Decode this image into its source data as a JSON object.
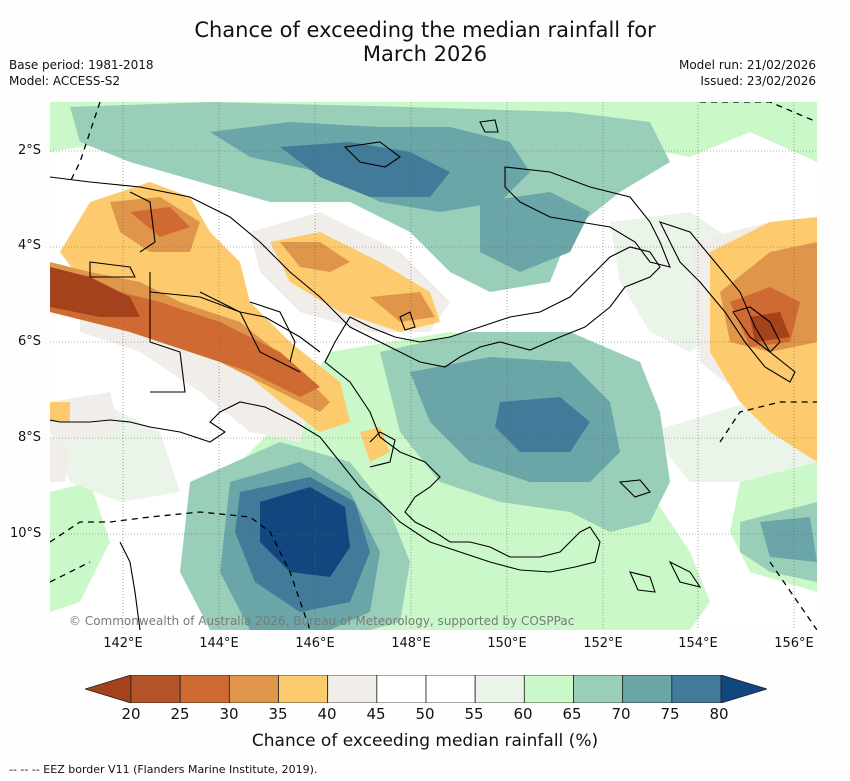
{
  "title": {
    "line1": "Chance of exceeding the median rainfall for",
    "line2": "March 2026"
  },
  "meta": {
    "base_period": "Base period: 1981-2018",
    "model": "Model: ACCESS-S2",
    "model_run": "Model run: 21/02/2026",
    "issued": "Issued: 23/02/2026"
  },
  "map": {
    "lat_labels": [
      "2°S",
      "4°S",
      "6°S",
      "8°S",
      "10°S"
    ],
    "lon_labels": [
      "142°E",
      "144°E",
      "146°E",
      "148°E",
      "150°E",
      "152°E",
      "154°E",
      "156°E"
    ],
    "copyright": "© Commonwealth of Australia 2026, Bureau of Meteorology, supported by COSPPac",
    "ocean_color": "#ffffff",
    "land_line_color": "#000000",
    "dash_color": "#000000"
  },
  "colorbar": {
    "ticks": [
      "20",
      "25",
      "30",
      "35",
      "40",
      "45",
      "50",
      "55",
      "60",
      "65",
      "70",
      "75",
      "80"
    ],
    "colors": [
      "#a3421b",
      "#b4532a",
      "#cf6a33",
      "#e0964a",
      "#fdcb6e",
      "#f1eeea",
      "#ffffff",
      "#ffffff",
      "#eaf4e8",
      "#cbf8c9",
      "#99cfb8",
      "#6aa5a8",
      "#427b9a",
      "#11467f"
    ],
    "label": "Chance of exceeding median rainfall (%)"
  },
  "footnote": "--  --  -- EEZ border V11 (Flanders Marine Institute, 2019)."
}
